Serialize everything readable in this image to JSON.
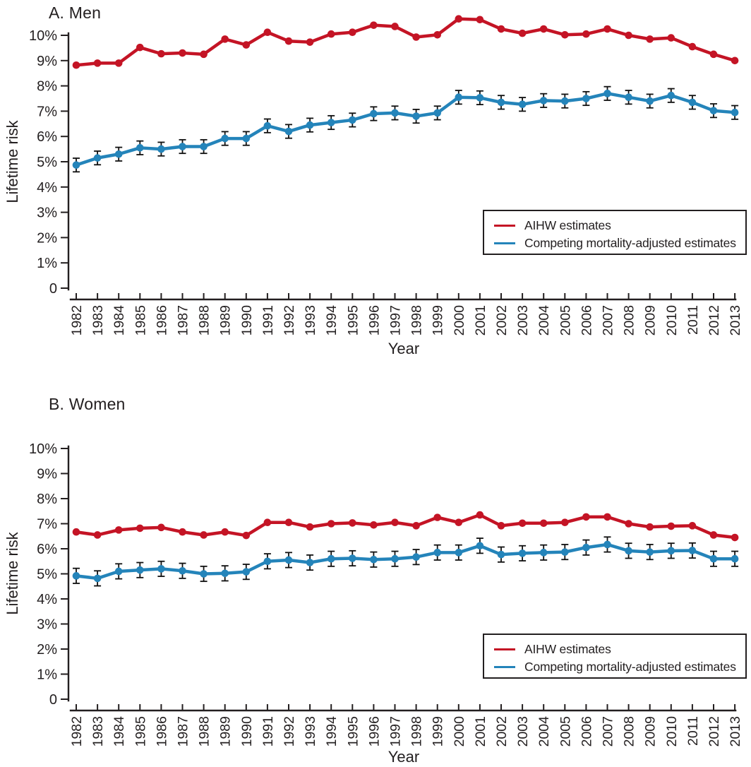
{
  "chart_data": [
    {
      "type": "line",
      "title": "A. Men",
      "xlabel": "Year",
      "ylabel": "Lifetime risk",
      "legend_position": "lower right",
      "grid": false,
      "ylim": [
        0,
        10
      ],
      "ytick_labels": [
        "0",
        "1%",
        "2%",
        "3%",
        "4%",
        "5%",
        "6%",
        "7%",
        "8%",
        "9%",
        "10%"
      ],
      "x": [
        1982,
        1983,
        1984,
        1985,
        1986,
        1987,
        1988,
        1989,
        1990,
        1991,
        1992,
        1993,
        1994,
        1995,
        1996,
        1997,
        1998,
        1999,
        2000,
        2001,
        2002,
        2003,
        2004,
        2005,
        2006,
        2007,
        2008,
        2009,
        2010,
        2011,
        2012,
        2013
      ],
      "series": [
        {
          "name": "AIHW estimates",
          "color": "#c41425",
          "error": 0,
          "values": [
            8.82,
            8.9,
            8.9,
            9.52,
            9.27,
            9.3,
            9.25,
            9.85,
            9.62,
            10.12,
            9.77,
            9.73,
            10.05,
            10.12,
            10.4,
            10.35,
            9.93,
            10.02,
            10.65,
            10.62,
            10.25,
            10.08,
            10.25,
            10.02,
            10.05,
            10.25,
            10.0,
            9.85,
            9.9,
            9.55,
            9.25,
            9.0
          ]
        },
        {
          "name": "Competing mortality-adjusted estimates",
          "color": "#2484ba",
          "error": 0.27,
          "values": [
            4.87,
            5.15,
            5.3,
            5.55,
            5.5,
            5.6,
            5.6,
            5.92,
            5.92,
            6.42,
            6.2,
            6.45,
            6.55,
            6.65,
            6.9,
            6.93,
            6.8,
            6.93,
            7.55,
            7.53,
            7.35,
            7.27,
            7.42,
            7.4,
            7.5,
            7.7,
            7.55,
            7.4,
            7.62,
            7.35,
            7.02,
            6.95
          ]
        }
      ]
    },
    {
      "type": "line",
      "title": "B. Women",
      "xlabel": "Year",
      "ylabel": "Lifetime risk",
      "legend_position": "lower right",
      "grid": false,
      "ylim": [
        0,
        10
      ],
      "ytick_labels": [
        "0",
        "1%",
        "2%",
        "3%",
        "4%",
        "5%",
        "6%",
        "7%",
        "8%",
        "9%",
        "10%"
      ],
      "x": [
        1982,
        1983,
        1984,
        1985,
        1986,
        1987,
        1988,
        1989,
        1990,
        1991,
        1992,
        1993,
        1994,
        1995,
        1996,
        1997,
        1998,
        1999,
        2000,
        2001,
        2002,
        2003,
        2004,
        2005,
        2006,
        2007,
        2008,
        2009,
        2010,
        2011,
        2012,
        2013
      ],
      "series": [
        {
          "name": "AIHW estimates",
          "color": "#c41425",
          "error": 0,
          "values": [
            6.67,
            6.55,
            6.75,
            6.82,
            6.85,
            6.67,
            6.55,
            6.67,
            6.53,
            7.05,
            7.05,
            6.87,
            7.0,
            7.03,
            6.95,
            7.05,
            6.92,
            7.25,
            7.05,
            7.35,
            6.92,
            7.02,
            7.02,
            7.05,
            7.27,
            7.27,
            7.0,
            6.87,
            6.9,
            6.92,
            6.55,
            6.45
          ]
        },
        {
          "name": "Competing mortality-adjusted estimates",
          "color": "#2484ba",
          "error": 0.3,
          "values": [
            4.92,
            4.82,
            5.1,
            5.15,
            5.2,
            5.12,
            5.0,
            5.02,
            5.08,
            5.5,
            5.55,
            5.45,
            5.6,
            5.62,
            5.57,
            5.6,
            5.67,
            5.85,
            5.85,
            6.12,
            5.77,
            5.82,
            5.85,
            5.87,
            6.05,
            6.17,
            5.92,
            5.87,
            5.92,
            5.93,
            5.6,
            5.6
          ]
        }
      ]
    }
  ]
}
